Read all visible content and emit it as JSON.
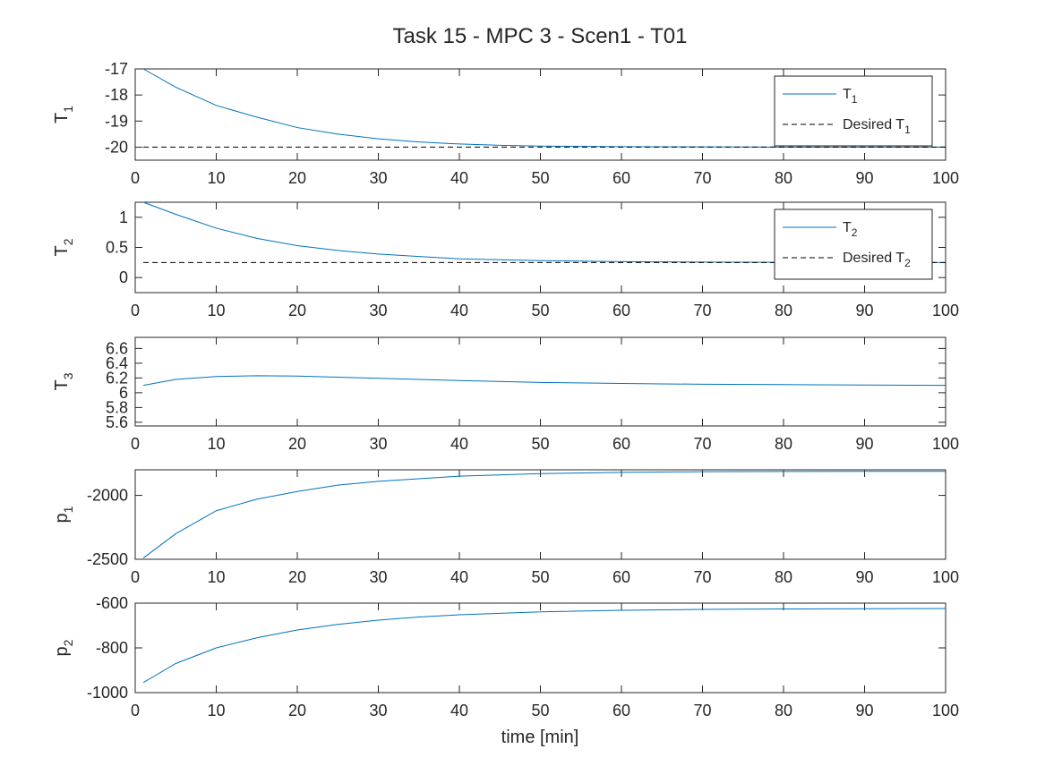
{
  "chart_data": {
    "title": "Task 15 - MPC 3 - Scen1 - T01",
    "xlabel": "time [min]",
    "xlim": [
      0,
      100
    ],
    "xticks": [
      0,
      10,
      20,
      30,
      40,
      50,
      60,
      70,
      80,
      90,
      100
    ],
    "grid": false,
    "colors": {
      "series": "#0072bd",
      "desired": "#000000",
      "axes": "#262626"
    },
    "subplots": [
      {
        "type": "line",
        "ylabel": {
          "base": "T",
          "sub": "1"
        },
        "ylim": [
          -20.5,
          -17
        ],
        "yticks": [
          -20,
          -19,
          -18,
          -17
        ],
        "legend": {
          "location": "top-right",
          "entries": [
            {
              "base": "T",
              "sub": "1",
              "style": "solid"
            },
            {
              "base": "Desired T",
              "sub": "1",
              "style": "dashed"
            }
          ]
        },
        "series": [
          {
            "style": "solid",
            "x": [
              1,
              5,
              10,
              15,
              20,
              25,
              30,
              35,
              40,
              45,
              50,
              60,
              70,
              80,
              90,
              100
            ],
            "y": [
              -17.0,
              -17.7,
              -18.4,
              -18.85,
              -19.25,
              -19.5,
              -19.68,
              -19.8,
              -19.88,
              -19.93,
              -19.96,
              -19.98,
              -19.99,
              -20.0,
              -20.0,
              -20.0
            ]
          },
          {
            "style": "dashed",
            "x": [
              1,
              100
            ],
            "y": [
              -20,
              -20
            ]
          }
        ]
      },
      {
        "type": "line",
        "ylabel": {
          "base": "T",
          "sub": "2"
        },
        "ylim": [
          -0.25,
          1.25
        ],
        "yticks": [
          0,
          0.5,
          1
        ],
        "legend": {
          "location": "top-right",
          "entries": [
            {
              "base": "T",
              "sub": "2",
              "style": "solid"
            },
            {
              "base": "Desired T",
              "sub": "2",
              "style": "dashed"
            }
          ]
        },
        "series": [
          {
            "style": "solid",
            "x": [
              1,
              5,
              10,
              15,
              20,
              25,
              30,
              35,
              40,
              50,
              60,
              70,
              80,
              90,
              100
            ],
            "y": [
              1.25,
              1.05,
              0.82,
              0.65,
              0.53,
              0.45,
              0.39,
              0.35,
              0.31,
              0.28,
              0.265,
              0.257,
              0.253,
              0.251,
              0.25
            ]
          },
          {
            "style": "dashed",
            "x": [
              1,
              100
            ],
            "y": [
              0.25,
              0.25
            ]
          }
        ]
      },
      {
        "type": "line",
        "ylabel": {
          "base": "T",
          "sub": "3"
        },
        "ylim": [
          5.55,
          6.75
        ],
        "yticks": [
          5.6,
          5.8,
          6,
          6.2,
          6.4,
          6.6
        ],
        "series": [
          {
            "style": "solid",
            "x": [
              1,
              5,
              10,
              15,
              20,
              25,
              30,
              35,
              40,
              50,
              60,
              70,
              80,
              90,
              100
            ],
            "y": [
              6.1,
              6.18,
              6.22,
              6.23,
              6.225,
              6.21,
              6.195,
              6.18,
              6.165,
              6.14,
              6.125,
              6.115,
              6.11,
              6.105,
              6.1
            ]
          }
        ]
      },
      {
        "type": "line",
        "ylabel": {
          "base": "p",
          "sub": "1"
        },
        "ylim": [
          -2500,
          -1800
        ],
        "yticks": [
          -2500,
          -2000
        ],
        "series": [
          {
            "style": "solid",
            "x": [
              1,
              5,
              10,
              15,
              20,
              25,
              30,
              35,
              40,
              50,
              60,
              70,
              80,
              90,
              100
            ],
            "y": [
              -2490,
              -2300,
              -2120,
              -2030,
              -1970,
              -1920,
              -1890,
              -1870,
              -1850,
              -1830,
              -1820,
              -1815,
              -1813,
              -1812,
              -1812
            ]
          }
        ]
      },
      {
        "type": "line",
        "ylabel": {
          "base": "p",
          "sub": "2"
        },
        "ylim": [
          -1000,
          -600
        ],
        "yticks": [
          -1000,
          -800,
          -600
        ],
        "series": [
          {
            "style": "solid",
            "x": [
              1,
              5,
              10,
              15,
              20,
              25,
              30,
              35,
              40,
              50,
              60,
              70,
              80,
              90,
              100
            ],
            "y": [
              -955,
              -870,
              -800,
              -755,
              -720,
              -695,
              -676,
              -662,
              -652,
              -639,
              -632,
              -628,
              -626,
              -625,
              -624
            ]
          }
        ]
      }
    ]
  }
}
